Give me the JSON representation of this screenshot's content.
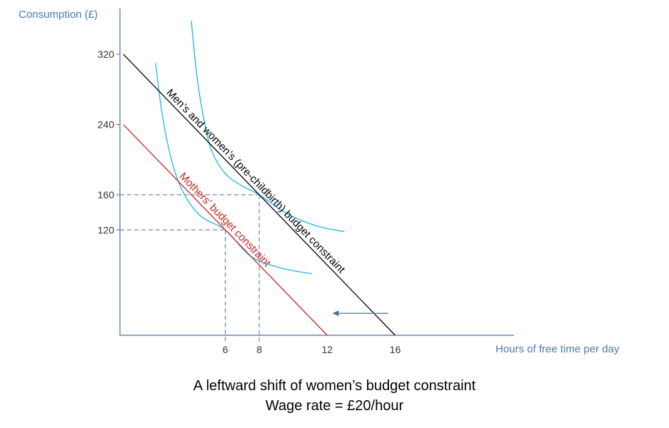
{
  "chart_data": {
    "type": "line",
    "caption_line1": "A leftward shift of women’s budget constraint",
    "caption_line2": "Wage rate = £20/hour",
    "xlabel": "Hours of free time per day",
    "ylabel": "Consumption (£)",
    "x_ticks": [
      6,
      8,
      12,
      16
    ],
    "y_ticks": [
      120,
      160,
      240,
      320
    ],
    "xlim": [
      -0.2,
      23
    ],
    "ylim": [
      0,
      372
    ],
    "series": [
      {
        "name": "Men’s and women’s (pre-childbirth) budget constraint",
        "color": "#000000",
        "x": [
          0,
          16
        ],
        "y": [
          320,
          0
        ]
      },
      {
        "name": "Mothers’ budget constraint",
        "color": "#cc2222",
        "x": [
          0,
          12
        ],
        "y": [
          240,
          0
        ]
      }
    ],
    "indifference_curves": [
      {
        "color": "#1fb6e0",
        "x": [
          4.0,
          4.3,
          4.7,
          5.2,
          6.0,
          7.0,
          8.0,
          9.5,
          11.3,
          13.0
        ],
        "y": [
          358,
          300,
          250,
          210,
          184,
          170,
          160,
          140,
          125,
          118
        ]
      },
      {
        "color": "#1fb6e0",
        "x": [
          1.9,
          2.3,
          2.9,
          3.6,
          4.6,
          6.0,
          7.5,
          9.2,
          11.1
        ],
        "y": [
          310,
          250,
          195,
          160,
          135,
          120,
          90,
          77,
          70
        ]
      }
    ],
    "reference_lines": [
      {
        "x": 6,
        "y": 120,
        "color": "#4a6fa5"
      },
      {
        "x": 8,
        "y": 160,
        "color": "#4a6fa5"
      }
    ],
    "shift_arrow": {
      "from_x": 15.6,
      "to_x": 12.3,
      "y": 25,
      "color": "#4a6fa5"
    },
    "grid": false
  }
}
